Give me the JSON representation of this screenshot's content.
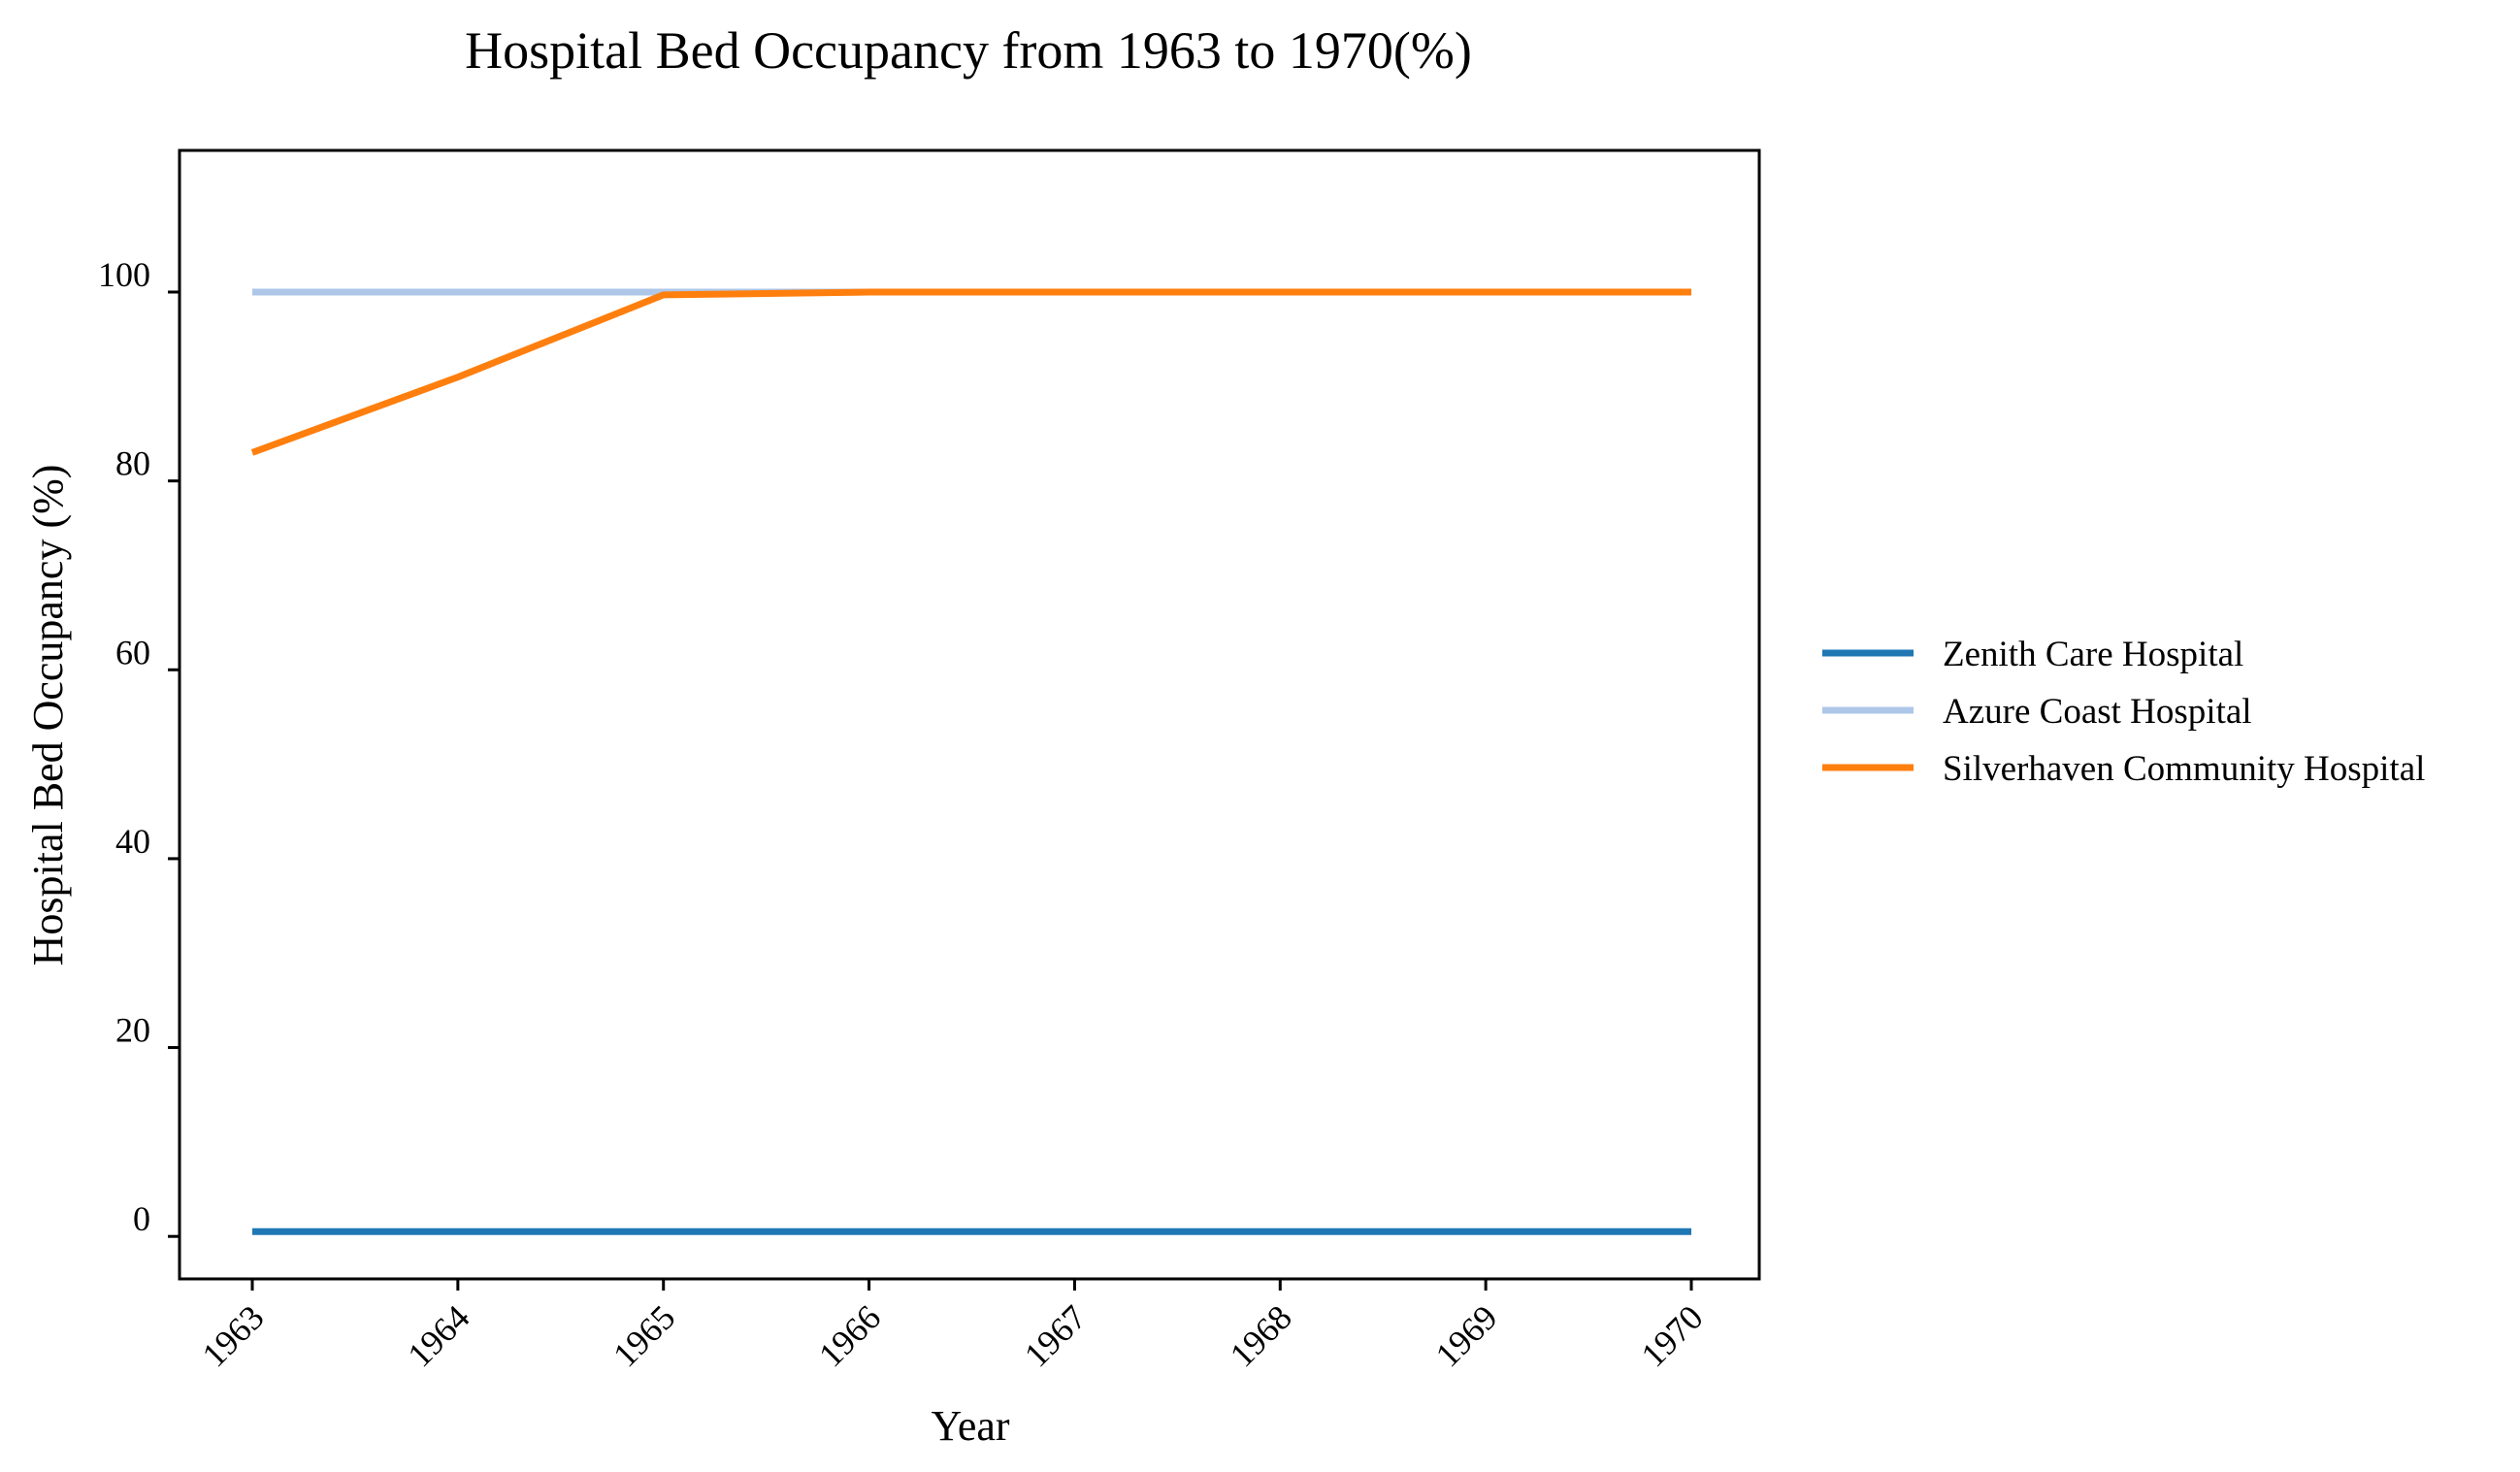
{
  "chart_data": {
    "type": "line",
    "title": "Hospital Bed Occupancy from 1963 to 1970(%)",
    "xlabel": "Year",
    "ylabel": "Hospital Bed Occupancy (%)",
    "x": [
      "1963",
      "1964",
      "1965",
      "1966",
      "1967",
      "1968",
      "1969",
      "1970"
    ],
    "ylim": [
      -4.5,
      115
    ],
    "yticks": [
      "0",
      "20",
      "40",
      "60",
      "80",
      "100"
    ],
    "grid": false,
    "legend_position": "right",
    "series": [
      {
        "name": "Zenith Care Hospital",
        "color": "#1f77b4",
        "values": [
          0.5,
          0.5,
          0.5,
          0.5,
          0.5,
          0.5,
          0.5,
          0.5
        ]
      },
      {
        "name": "Azure Coast Hospital",
        "color": "#aec7e8",
        "values": [
          100,
          100,
          100,
          100,
          100,
          100,
          100,
          100
        ]
      },
      {
        "name": "Silverhaven Community Hospital",
        "color": "#ff7f0e",
        "values": [
          83,
          91,
          99.7,
          100,
          100,
          100,
          100,
          100
        ]
      }
    ]
  }
}
